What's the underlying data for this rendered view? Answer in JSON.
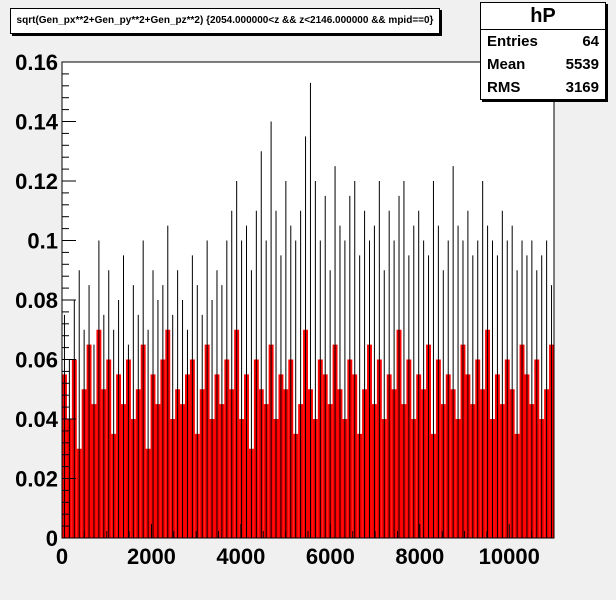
{
  "title": "sqrt(Gen_px**2+Gen_py**2+Gen_pz**2) {2054.000000<z && z<2146.000000 && mpid==0}",
  "stats": {
    "name": "hP",
    "rows": [
      {
        "label": "Entries",
        "value": "64"
      },
      {
        "label": "Mean",
        "value": "5539"
      },
      {
        "label": "RMS",
        "value": "3169"
      }
    ]
  },
  "colors": {
    "fill": "#ff0000",
    "line": "#000000",
    "frame_bg": "#ffffff",
    "canvas_bg": "#f0f0f0"
  },
  "chart_data": {
    "type": "bar",
    "style": "histogram",
    "title": "sqrt(Gen_px**2+Gen_py**2+Gen_pz**2) {2054.000000<z && z<2146.000000 && mpid==0}",
    "xlabel": "",
    "ylabel": "",
    "xlim": [
      0,
      11000
    ],
    "ylim": [
      0,
      0.16
    ],
    "grid": false,
    "legend": "none",
    "x_ticks": [
      0,
      2000,
      4000,
      6000,
      8000,
      10000
    ],
    "x_tick_labels": [
      "0",
      "2000",
      "4000",
      "6000",
      "8000",
      "10000"
    ],
    "y_ticks": [
      0,
      0.02,
      0.04,
      0.06,
      0.08,
      0.1,
      0.12,
      0.14,
      0.16
    ],
    "y_tick_labels": [
      "0",
      "0.02",
      "0.04",
      "0.06",
      "0.08",
      "0.1",
      "0.12",
      "0.14",
      "0.16"
    ],
    "x_start": 0,
    "bin_width": 10,
    "fill_values": [
      0.055,
      0.04,
      0.06,
      0.03,
      0.05,
      0.065,
      0.045,
      0.07,
      0.05,
      0.06,
      0.035,
      0.055,
      0.045,
      0.06,
      0.04,
      0.05,
      0.065,
      0.03,
      0.055,
      0.045,
      0.06,
      0.07,
      0.04,
      0.05,
      0.045,
      0.055,
      0.06,
      0.035,
      0.05,
      0.065,
      0.04,
      0.055,
      0.045,
      0.06,
      0.05,
      0.07,
      0.04,
      0.055,
      0.03,
      0.06,
      0.05,
      0.045,
      0.065,
      0.04,
      0.055,
      0.05,
      0.06,
      0.035,
      0.045,
      0.07,
      0.05,
      0.04,
      0.06,
      0.055,
      0.045,
      0.065,
      0.05,
      0.04,
      0.06,
      0.055,
      0.035,
      0.05,
      0.065,
      0.045,
      0.06,
      0.04,
      0.055,
      0.05,
      0.07,
      0.045,
      0.06,
      0.04,
      0.055,
      0.05,
      0.065,
      0.035,
      0.06,
      0.045,
      0.055,
      0.05,
      0.04,
      0.065,
      0.055,
      0.045,
      0.06,
      0.05,
      0.07,
      0.04,
      0.055,
      0.045,
      0.06,
      0.05,
      0.035,
      0.065,
      0.055,
      0.045,
      0.06,
      0.04,
      0.05,
      0.065
    ],
    "peak_values": [
      0.075,
      0.06,
      0.08,
      0.09,
      0.07,
      0.085,
      0.065,
      0.1,
      0.075,
      0.09,
      0.07,
      0.08,
      0.095,
      0.065,
      0.085,
      0.075,
      0.1,
      0.07,
      0.09,
      0.08,
      0.085,
      0.105,
      0.075,
      0.09,
      0.08,
      0.07,
      0.095,
      0.085,
      0.075,
      0.1,
      0.08,
      0.09,
      0.085,
      0.1,
      0.11,
      0.12,
      0.1,
      0.105,
      0.09,
      0.11,
      0.13,
      0.1,
      0.14,
      0.11,
      0.095,
      0.12,
      0.105,
      0.1,
      0.11,
      0.135,
      0.153,
      0.12,
      0.1,
      0.115,
      0.09,
      0.125,
      0.105,
      0.1,
      0.115,
      0.12,
      0.095,
      0.11,
      0.1,
      0.105,
      0.12,
      0.09,
      0.11,
      0.1,
      0.115,
      0.12,
      0.095,
      0.105,
      0.11,
      0.1,
      0.095,
      0.12,
      0.105,
      0.09,
      0.1,
      0.125,
      0.105,
      0.1,
      0.11,
      0.095,
      0.1,
      0.12,
      0.105,
      0.1,
      0.095,
      0.11,
      0.1,
      0.105,
      0.09,
      0.1,
      0.095,
      0.1,
      0.09,
      0.095,
      0.1,
      0.085
    ]
  }
}
